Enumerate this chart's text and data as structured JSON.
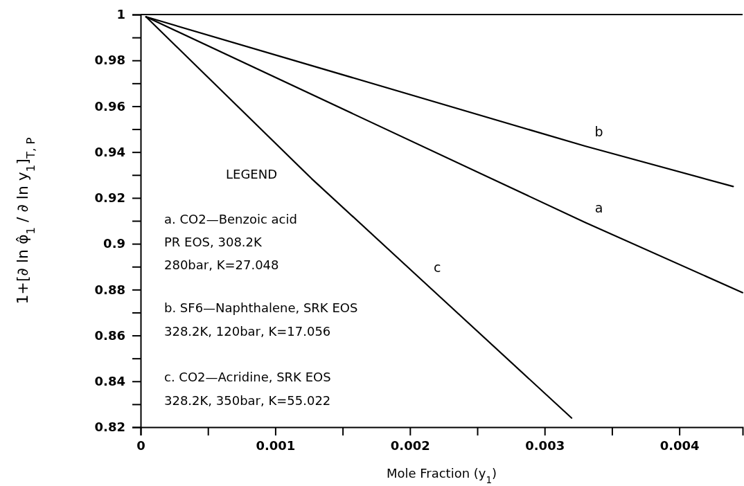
{
  "chart_data": {
    "type": "line",
    "xlabel": "Mole Fraction (y$_{1}$)",
    "ylabel": "1+[∂ ln φ̂$_{1}$ / ∂ ln y$_{1}$]$_{T, P}$",
    "xlim": [
      0,
      0.00447
    ],
    "ylim": [
      0.82,
      1
    ],
    "xticks": [
      0,
      {
        "value": 0.0005,
        "label": null
      },
      0.001,
      {
        "value": 0.0015,
        "label": null
      },
      0.002,
      {
        "value": 0.0025,
        "label": null
      },
      0.003,
      {
        "value": 0.0035,
        "label": null
      },
      0.004
    ],
    "yticks": [
      0.82,
      {
        "value": 0.83,
        "label": null
      },
      0.84,
      {
        "value": 0.85,
        "label": null
      },
      0.86,
      {
        "value": 0.87,
        "label": null
      },
      0.88,
      {
        "value": 0.89,
        "label": null
      },
      0.9,
      {
        "value": 0.91,
        "label": null
      },
      0.92,
      {
        "value": 0.93,
        "label": null
      },
      0.94,
      {
        "value": 0.95,
        "label": null
      },
      0.96,
      {
        "value": 0.97,
        "label": null
      },
      0.98,
      {
        "value": 0.99,
        "label": null
      },
      1
    ],
    "grid": false,
    "marker": "none",
    "line_style": "solid",
    "series": [
      {
        "name": "a",
        "color": "#000000",
        "x": [
          4e-05,
          0.0033,
          0.00447
        ],
        "values": [
          0.999,
          0.9093,
          0.8787
        ]
      },
      {
        "name": "b",
        "color": "#000000",
        "x": [
          4e-05,
          0.0033,
          0.0044
        ],
        "values": [
          0.999,
          0.9426,
          0.925
        ]
      },
      {
        "name": "c",
        "color": "#000000",
        "x": [
          4e-05,
          0.00127,
          0.0021,
          0.0032
        ],
        "values": [
          0.999,
          0.9284,
          0.8835,
          0.824
        ]
      }
    ],
    "annotations": [
      "LEGEND",
      "a. CO2—Benzoic acid",
      "PR EOS, 308.2K",
      "280bar, K=27.048",
      "b. SF6—Naphthalene, SRK EOS",
      "328.2K, 120bar, K=17.056",
      "c. CO2—Acridine, SRK EOS",
      "328.2K, 350bar, K=55.022"
    ]
  }
}
